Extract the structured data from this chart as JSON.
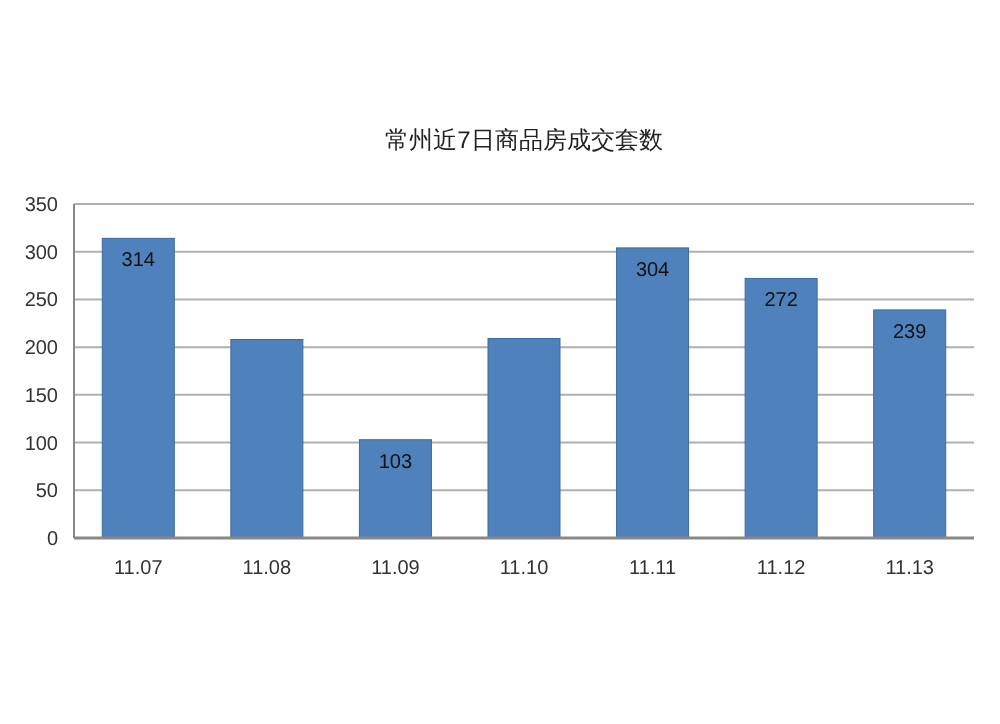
{
  "chart_data": {
    "type": "bar",
    "title": "常州近7日商品房成交套数",
    "categories": [
      "11.07",
      "11.08",
      "11.09",
      "11.10",
      "11.11",
      "11.12",
      "11.13"
    ],
    "values": [
      314,
      208,
      103,
      209,
      304,
      272,
      239
    ],
    "value_labels": [
      "314",
      null,
      "103",
      null,
      "304",
      "272",
      "239"
    ],
    "color": "#4f81bd",
    "ylim": [
      0,
      350
    ],
    "yticks": [
      0,
      50,
      100,
      150,
      200,
      250,
      300,
      350
    ],
    "grid": "y"
  }
}
